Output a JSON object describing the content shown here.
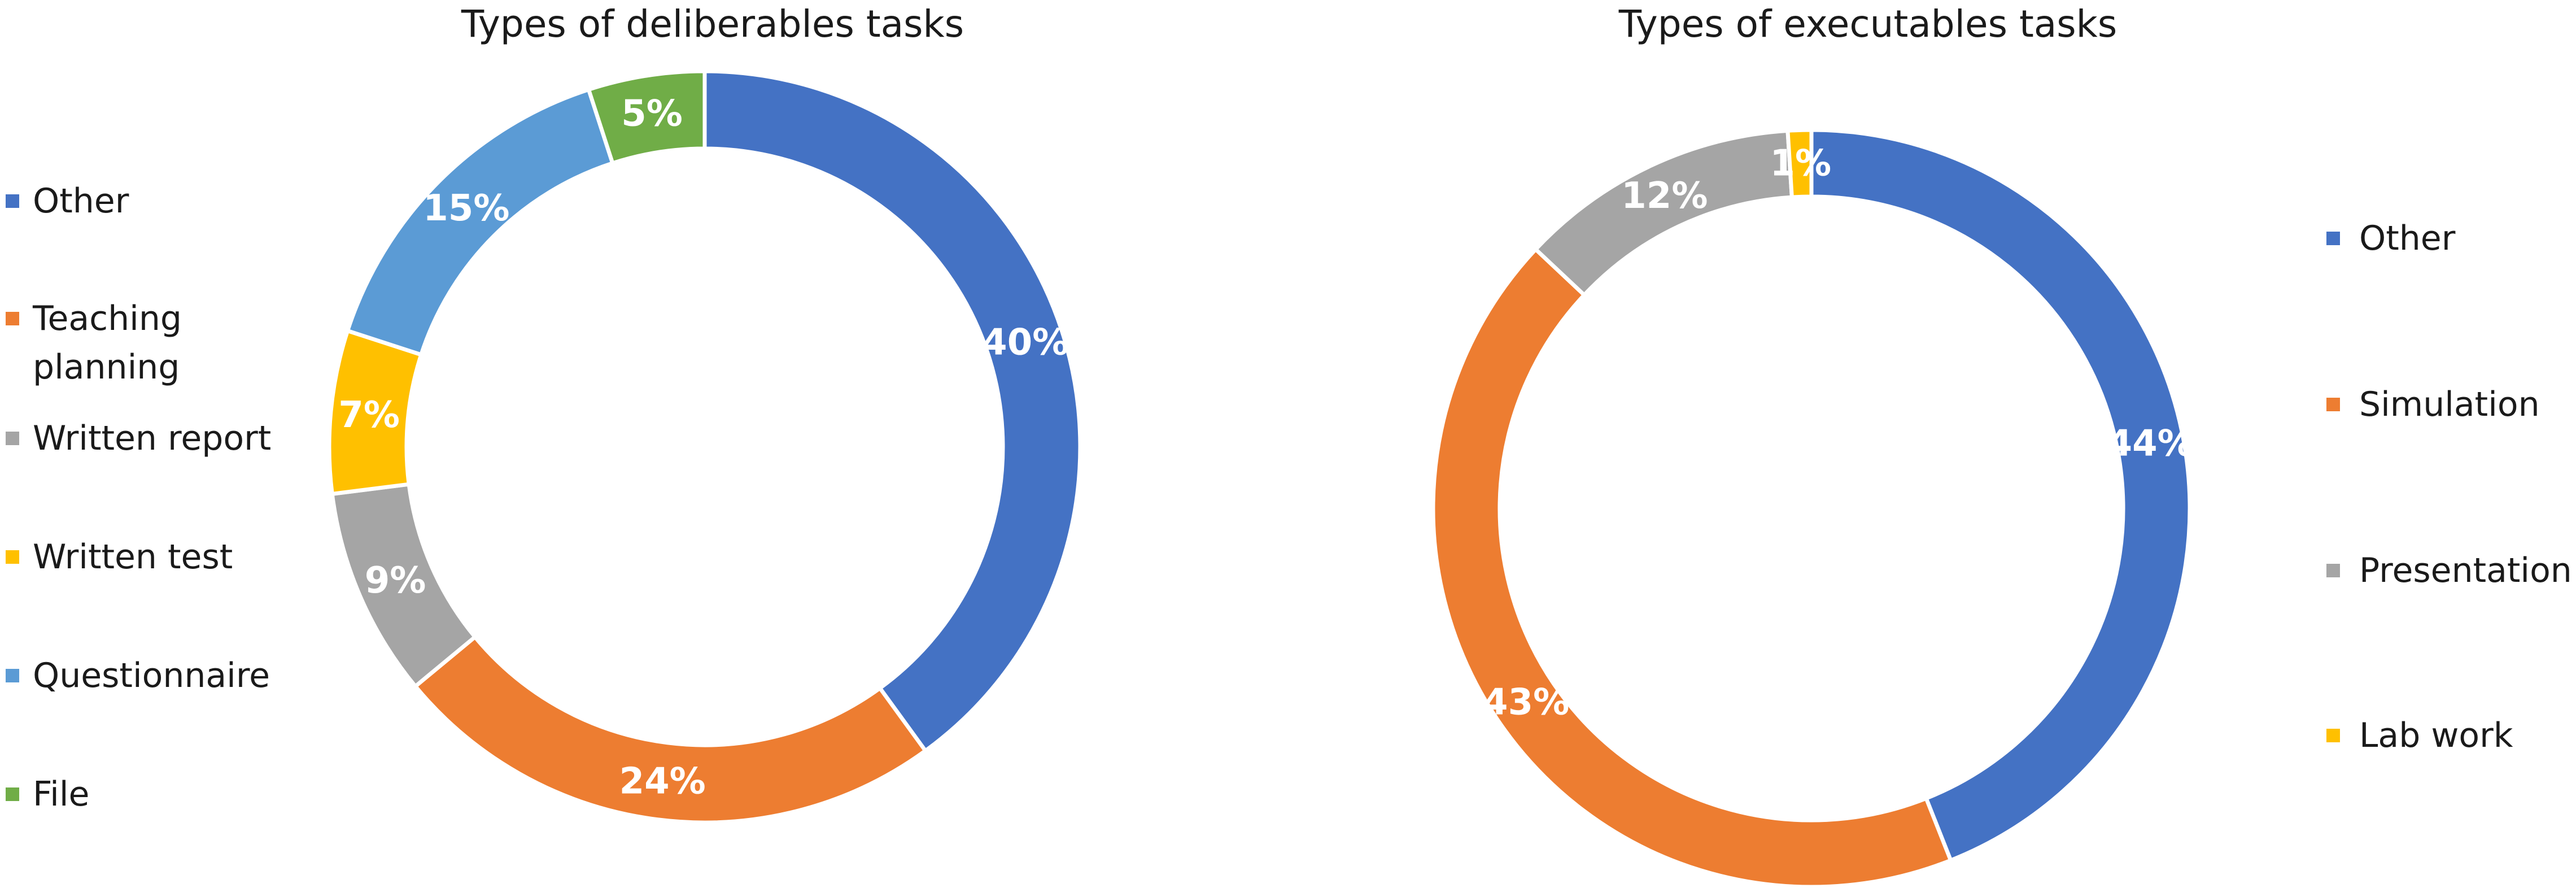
{
  "chart_data": [
    {
      "type": "pie",
      "variant": "donut",
      "title": "Types of deliberables tasks",
      "legend_position": "left",
      "categories": [
        "Other",
        "Teaching planning",
        "Written report",
        "Written test",
        "Questionnaire",
        "File"
      ],
      "values": [
        40,
        24,
        9,
        7,
        15,
        5
      ],
      "data_labels": [
        "40%",
        "24%",
        "9%",
        "7%",
        "15%",
        "5%"
      ],
      "colors": [
        "#4472C4",
        "#ED7D31",
        "#A5A5A5",
        "#FFC000",
        "#5B9BD5",
        "#70AD47"
      ]
    },
    {
      "type": "pie",
      "variant": "donut",
      "title": "Types of executables tasks",
      "legend_position": "right",
      "categories": [
        "Other",
        "Simulation",
        "Presentation",
        "Lab work"
      ],
      "values": [
        44,
        43,
        12,
        1
      ],
      "data_labels": [
        "44%",
        "43%",
        "12%",
        "1%"
      ],
      "colors": [
        "#4472C4",
        "#ED7D31",
        "#A5A5A5",
        "#FFC000"
      ]
    }
  ]
}
